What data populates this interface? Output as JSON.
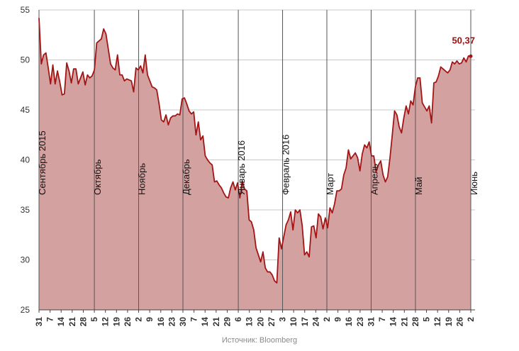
{
  "colors": {
    "line": "#a31515",
    "fill": "#d4a1a1",
    "grid": "#c8c8c8",
    "month_line": "#555555",
    "last_label": "#9b1010"
  },
  "source": "Источник: Bloomberg",
  "chart_data": {
    "type": "area",
    "title": "",
    "xlabel": "",
    "ylabel": "",
    "ylim": [
      25,
      55
    ],
    "yticks": [
      25,
      30,
      35,
      40,
      45,
      50,
      55
    ],
    "grid": "horizontal",
    "x_tick_labels": [
      "31",
      "7",
      "14",
      "21",
      "28",
      "5",
      "12",
      "19",
      "26",
      "2",
      "9",
      "16",
      "23",
      "30",
      "7",
      "14",
      "21",
      "29",
      "6",
      "13",
      "20",
      "27",
      "3",
      "10",
      "17",
      "24",
      "2",
      "9",
      "16",
      "23",
      "31",
      "7",
      "14",
      "21",
      "28",
      "5",
      "12",
      "19",
      "26",
      "2"
    ],
    "month_markers": [
      {
        "label": "Сентябрь 2015",
        "tick_index": 0
      },
      {
        "label": "Октябрь",
        "tick_index": 5
      },
      {
        "label": "Ноябрь",
        "tick_index": 9
      },
      {
        "label": "Декабрь",
        "tick_index": 13
      },
      {
        "label": "Январь 2016",
        "tick_index": 18
      },
      {
        "label": "Февраль 2016",
        "tick_index": 22
      },
      {
        "label": "Март",
        "tick_index": 26
      },
      {
        "label": "Апрель",
        "tick_index": 30
      },
      {
        "label": "Май",
        "tick_index": 34
      },
      {
        "label": "Июнь",
        "tick_index": 39
      }
    ],
    "last_value_label": "50,37",
    "series": [
      {
        "values": [
          54.2,
          49.6,
          50.5,
          50.7,
          49.2,
          47.6,
          49.5,
          47.6,
          48.9,
          47.8,
          46.5,
          46.6,
          49.7,
          48.9,
          47.7,
          49.1,
          49.1,
          47.6,
          48.2,
          48.8,
          47.5,
          48.5,
          48.2,
          48.4,
          49.0,
          51.7,
          51.9,
          52.1,
          53.1,
          52.6,
          51.1,
          49.6,
          49.2,
          49.0,
          50.5,
          48.5,
          48.5,
          47.9,
          48.1,
          48.0,
          47.9,
          46.8,
          49.2,
          49.0,
          49.4,
          48.7,
          50.5,
          48.5,
          47.9,
          47.3,
          47.2,
          47.0,
          45.6,
          44.0,
          43.8,
          44.5,
          43.5,
          44.2,
          44.4,
          44.4,
          44.6,
          44.5,
          46.1,
          46.2,
          45.6,
          44.9,
          44.6,
          44.8,
          42.5,
          43.8,
          42.0,
          42.4,
          40.4,
          40.0,
          39.7,
          39.5,
          37.8,
          37.9,
          37.5,
          37.2,
          36.7,
          36.3,
          36.2,
          37.2,
          37.8,
          37.0,
          37.7,
          36.2,
          37.9,
          37.1,
          36.9,
          34.0,
          33.8,
          33.0,
          31.2,
          30.5,
          29.8,
          30.8,
          29.2,
          28.8,
          28.8,
          28.5,
          27.9,
          27.7,
          32.2,
          31.1,
          32.3,
          33.5,
          34.0,
          34.8,
          33.0,
          35.0,
          34.7,
          35.0,
          33.4,
          30.5,
          30.8,
          30.3,
          33.3,
          33.4,
          32.2,
          34.6,
          34.3,
          33.1,
          34.2,
          33.2,
          35.2,
          34.7,
          35.6,
          36.9,
          36.9,
          37.1,
          38.5,
          39.2,
          41.0,
          40.1,
          40.4,
          40.7,
          40.2,
          38.9,
          40.6,
          41.5,
          41.2,
          41.8,
          40.4,
          40.4,
          38.8,
          39.5,
          39.9,
          38.5,
          37.8,
          38.3,
          40.2,
          42.5,
          44.9,
          44.5,
          43.3,
          42.7,
          44.2,
          45.4,
          44.6,
          45.9,
          45.5,
          47.3,
          48.2,
          48.2,
          45.7,
          45.3,
          44.9,
          45.4,
          43.7,
          47.7,
          47.8,
          48.4,
          49.3,
          49.1,
          48.9,
          48.7,
          49.0,
          49.8,
          49.6,
          49.9,
          49.6,
          49.7,
          50.2,
          49.8,
          50.4,
          50.37
        ]
      }
    ]
  }
}
